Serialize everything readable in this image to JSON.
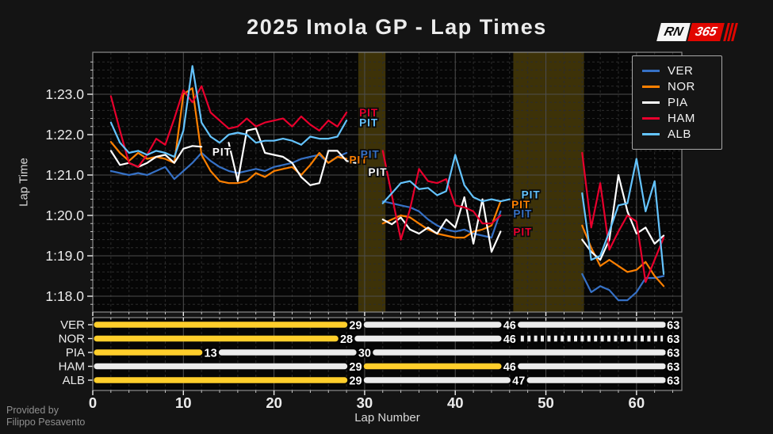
{
  "header": {
    "title": "2025 Imola GP - Lap Times",
    "logo_rn": "RN",
    "logo_365": "365"
  },
  "footer": {
    "line1": "Provided by",
    "line2": "Filippo Pesavento"
  },
  "colors": {
    "background": "#141414",
    "plot_bg": "#060606",
    "grid_major": "#4e4e4e",
    "grid_minor": "#2c2c2c",
    "spine": "#8c8c8c",
    "band": "#3d3208",
    "tick_label": "#ececec",
    "axis_label": "#d8d8d8",
    "pit_outline": "#0a0a0a",
    "logo_red": "#E10600"
  },
  "chart_data": [
    {
      "type": "line",
      "title": "2025 Imola GP - Lap Times",
      "xlabel": "Lap Number",
      "ylabel": "Lap Time",
      "xlim": [
        0,
        65
      ],
      "ylim_seconds": [
        77.6,
        84.05
      ],
      "x_ticks": [
        0,
        10,
        20,
        30,
        40,
        50,
        60
      ],
      "x_minor_step": 2,
      "y_ticks": [
        {
          "sec": 83,
          "label": "1:23.0"
        },
        {
          "sec": 82,
          "label": "1:22.0"
        },
        {
          "sec": 81,
          "label": "1:21.0"
        },
        {
          "sec": 80,
          "label": "1:20.0"
        },
        {
          "sec": 79,
          "label": "1:19.0"
        },
        {
          "sec": 78,
          "label": "1:18.0"
        }
      ],
      "grid": true,
      "legend_position": "top-right",
      "first_lap": 2,
      "highlight_bands": [
        {
          "from_lap": 29.3,
          "to_lap": 32.3
        },
        {
          "from_lap": 46.4,
          "to_lap": 54.2
        }
      ],
      "series": [
        {
          "name": "VER",
          "color": "#3671C6",
          "values": [
            81.1,
            81.05,
            81.0,
            81.05,
            81.0,
            81.1,
            81.2,
            80.9,
            81.1,
            81.3,
            81.55,
            81.35,
            81.2,
            81.1,
            81.05,
            81.1,
            81.15,
            81.1,
            81.2,
            81.25,
            81.3,
            81.4,
            81.45,
            81.5,
            81.3,
            81.45,
            81.55,
            null,
            null,
            null,
            80.35,
            80.3,
            80.25,
            80.2,
            80.1,
            79.9,
            79.75,
            79.65,
            79.6,
            79.65,
            79.55,
            79.5,
            79.45,
            80.1,
            null,
            null,
            null,
            null,
            null,
            null,
            null,
            null,
            78.55,
            78.1,
            78.25,
            78.15,
            77.9,
            77.9,
            78.1,
            78.45,
            78.45,
            78.5
          ]
        },
        {
          "name": "NOR",
          "color": "#FF8000",
          "values": [
            81.82,
            81.55,
            81.35,
            81.55,
            81.4,
            81.45,
            81.4,
            81.3,
            83.0,
            83.15,
            81.5,
            81.1,
            80.85,
            80.8,
            80.8,
            80.85,
            81.05,
            80.95,
            81.1,
            81.15,
            81.2,
            81.0,
            81.25,
            81.55,
            81.3,
            81.45,
            81.4,
            null,
            null,
            null,
            79.8,
            79.9,
            80.0,
            79.95,
            79.8,
            79.65,
            79.55,
            79.5,
            79.45,
            79.45,
            79.6,
            79.65,
            79.75,
            80.35,
            null,
            null,
            null,
            null,
            null,
            null,
            null,
            null,
            79.75,
            79.2,
            78.75,
            78.9,
            78.75,
            78.6,
            78.65,
            78.85,
            78.5,
            78.25
          ]
        },
        {
          "name": "PIA",
          "color": "#FFFFFF",
          "values": [
            81.6,
            81.25,
            81.3,
            81.2,
            81.3,
            81.45,
            81.5,
            81.3,
            81.65,
            81.72,
            81.7,
            null,
            null,
            81.8,
            80.85,
            82.1,
            82.15,
            81.55,
            81.5,
            81.45,
            81.3,
            80.95,
            80.75,
            80.8,
            81.6,
            81.6,
            81.35,
            81.3,
            null,
            null,
            79.9,
            79.78,
            79.95,
            79.65,
            79.55,
            79.7,
            79.55,
            79.9,
            79.7,
            80.45,
            79.3,
            80.4,
            79.1,
            79.6,
            null,
            null,
            null,
            null,
            null,
            null,
            null,
            null,
            79.4,
            79.1,
            78.9,
            79.4,
            81.0,
            80.1,
            79.55,
            79.7,
            79.3,
            79.5
          ]
        },
        {
          "name": "HAM",
          "color": "#E8002D",
          "values": [
            82.95,
            82.1,
            81.3,
            81.2,
            81.5,
            81.9,
            81.75,
            82.4,
            83.1,
            82.8,
            83.2,
            82.55,
            82.35,
            82.15,
            82.2,
            82.4,
            82.2,
            82.3,
            82.35,
            82.4,
            82.2,
            82.45,
            82.25,
            82.1,
            82.35,
            82.2,
            82.55,
            null,
            null,
            null,
            81.6,
            80.5,
            79.4,
            80.15,
            81.15,
            80.85,
            80.8,
            80.9,
            80.25,
            80.2,
            80.1,
            79.8,
            79.8,
            80.0,
            null,
            null,
            null,
            null,
            null,
            null,
            null,
            null,
            81.55,
            79.7,
            80.8,
            79.15,
            79.6,
            80.0,
            79.85,
            78.35,
            78.9,
            79.45
          ]
        },
        {
          "name": "ALB",
          "color": "#64C4FF",
          "values": [
            82.3,
            81.8,
            81.55,
            81.6,
            81.5,
            81.6,
            81.55,
            81.45,
            82.1,
            83.7,
            82.3,
            81.95,
            81.8,
            82.0,
            82.05,
            82.0,
            81.8,
            81.85,
            81.85,
            81.9,
            81.85,
            81.75,
            81.95,
            81.9,
            81.9,
            81.95,
            82.35,
            null,
            null,
            null,
            80.3,
            80.55,
            80.8,
            80.85,
            80.65,
            80.68,
            80.5,
            80.6,
            81.5,
            80.75,
            80.45,
            80.35,
            80.4,
            80.35,
            80.4,
            null,
            null,
            null,
            null,
            null,
            null,
            null,
            80.55,
            78.9,
            79.0,
            79.6,
            80.25,
            80.3,
            81.4,
            80.1,
            80.85,
            78.55
          ]
        }
      ],
      "pit_labels": [
        {
          "text": "PIT",
          "lap": 13.2,
          "sec": 81.58,
          "color": "#FFFFFF"
        },
        {
          "text": "PIT",
          "lap": 28.3,
          "sec": 81.38,
          "color": "#FF8000"
        },
        {
          "text": "PIT",
          "lap": 29.55,
          "sec": 81.52,
          "color": "#3671C6"
        },
        {
          "text": "PIT",
          "lap": 29.4,
          "sec": 82.3,
          "color": "#64C4FF"
        },
        {
          "text": "PIT",
          "lap": 29.4,
          "sec": 82.55,
          "color": "#E8002D"
        },
        {
          "text": "PIT",
          "lap": 30.4,
          "sec": 81.08,
          "color": "#FFFFFF"
        },
        {
          "text": "PIT",
          "lap": 46.2,
          "sec": 80.27,
          "color": "#FF8000"
        },
        {
          "text": "PIT",
          "lap": 47.3,
          "sec": 80.52,
          "color": "#64C4FF"
        },
        {
          "text": "PIT",
          "lap": 46.4,
          "sec": 80.05,
          "color": "#3671C6"
        },
        {
          "text": "PIT",
          "lap": 46.4,
          "sec": 79.6,
          "color": "#E8002D"
        }
      ]
    },
    {
      "type": "stint-bar",
      "tire_colors": {
        "medium": "#FFCE2B",
        "hard": "#EBEBEB"
      },
      "rows": [
        {
          "driver": "VER",
          "stints": [
            {
              "compound": "medium",
              "start": 0.45,
              "end": 29,
              "label": "29"
            },
            {
              "compound": "hard",
              "start": 29,
              "end": 46,
              "label": "46"
            },
            {
              "compound": "hard",
              "start": 46,
              "end": 63,
              "label": "63",
              "last": true
            }
          ]
        },
        {
          "driver": "NOR",
          "stints": [
            {
              "compound": "medium",
              "start": 0.45,
              "end": 28,
              "label": "28"
            },
            {
              "compound": "hard",
              "start": 28,
              "end": 46,
              "label": "46"
            },
            {
              "compound": "hard",
              "start": 46,
              "end": 63,
              "label": "63",
              "dashed": true,
              "last": true
            }
          ]
        },
        {
          "driver": "PIA",
          "stints": [
            {
              "compound": "medium",
              "start": 0.45,
              "end": 13,
              "label": "13"
            },
            {
              "compound": "hard",
              "start": 13,
              "end": 30,
              "label": "30"
            },
            {
              "compound": "hard",
              "start": 30,
              "end": 63,
              "label": "63",
              "last": true
            }
          ]
        },
        {
          "driver": "HAM",
          "stints": [
            {
              "compound": "hard",
              "start": 0.45,
              "end": 29,
              "label": "29"
            },
            {
              "compound": "medium",
              "start": 29,
              "end": 46,
              "label": "46"
            },
            {
              "compound": "hard",
              "start": 46,
              "end": 63,
              "label": "63",
              "last": true
            }
          ]
        },
        {
          "driver": "ALB",
          "stints": [
            {
              "compound": "medium",
              "start": 0.45,
              "end": 29,
              "label": "29"
            },
            {
              "compound": "hard",
              "start": 29,
              "end": 47,
              "label": "47"
            },
            {
              "compound": "hard",
              "start": 47,
              "end": 63,
              "label": "63",
              "last": true
            }
          ]
        }
      ]
    }
  ]
}
